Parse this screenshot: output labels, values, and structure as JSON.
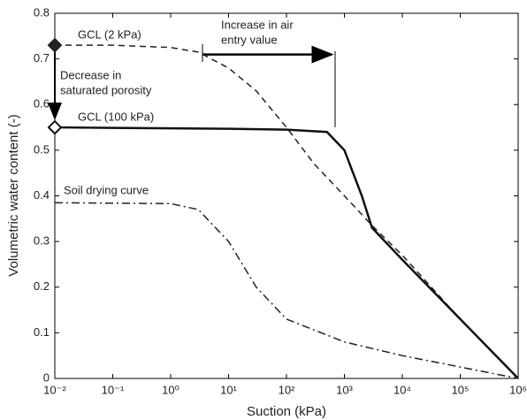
{
  "chart_data": {
    "type": "line",
    "x_label": "Suction (kPa)",
    "y_label": "Volumetric water content (-)",
    "x_scale": "log",
    "xlim": [
      0.01,
      1000000
    ],
    "ylim": [
      0,
      0.8
    ],
    "xticks": [
      {
        "value": 0.01,
        "label": "10⁻²"
      },
      {
        "value": 0.1,
        "label": "10⁻¹"
      },
      {
        "value": 1,
        "label": "10⁰"
      },
      {
        "value": 10,
        "label": "10¹"
      },
      {
        "value": 100,
        "label": "10²"
      },
      {
        "value": 1000,
        "label": "10³"
      },
      {
        "value": 10000,
        "label": "10⁴"
      },
      {
        "value": 100000,
        "label": "10⁵"
      },
      {
        "value": 1000000,
        "label": "10⁶"
      }
    ],
    "yticks": [
      0,
      0.1,
      0.2,
      0.3,
      0.4,
      0.5,
      0.6,
      0.7,
      0.8
    ],
    "series": [
      {
        "name": "GCL (2 kPa)",
        "color": "#222222",
        "dash": "7,5",
        "width": 1.5,
        "marker": "filled-diamond",
        "x": [
          0.01,
          0.1,
          1,
          3,
          10,
          30,
          100,
          300,
          1000,
          3000,
          10000,
          100000,
          1000000
        ],
        "values": [
          0.73,
          0.73,
          0.725,
          0.715,
          0.68,
          0.63,
          0.55,
          0.47,
          0.4,
          0.335,
          0.27,
          0.13,
          0
        ]
      },
      {
        "name": "GCL (100 kPa)",
        "color": "#111111",
        "dash": "none",
        "width": 2.5,
        "marker": "open-diamond",
        "x": [
          0.01,
          1,
          10,
          100,
          500,
          1000,
          2000,
          3000,
          10000,
          100000,
          1000000
        ],
        "values": [
          0.55,
          0.548,
          0.547,
          0.545,
          0.54,
          0.5,
          0.4,
          0.33,
          0.26,
          0.13,
          0
        ]
      },
      {
        "name": "Soil drying curve",
        "color": "#222222",
        "dash": "9,4,2,4",
        "width": 1.5,
        "marker": "none",
        "x": [
          0.01,
          1,
          3,
          10,
          30,
          100,
          1000,
          10000,
          100000,
          1000000
        ],
        "values": [
          0.385,
          0.383,
          0.37,
          0.3,
          0.2,
          0.13,
          0.08,
          0.05,
          0.025,
          0
        ]
      }
    ],
    "annotations": [
      "Increase in air",
      "entry value",
      "Decrease in",
      "saturated porosity"
    ]
  }
}
